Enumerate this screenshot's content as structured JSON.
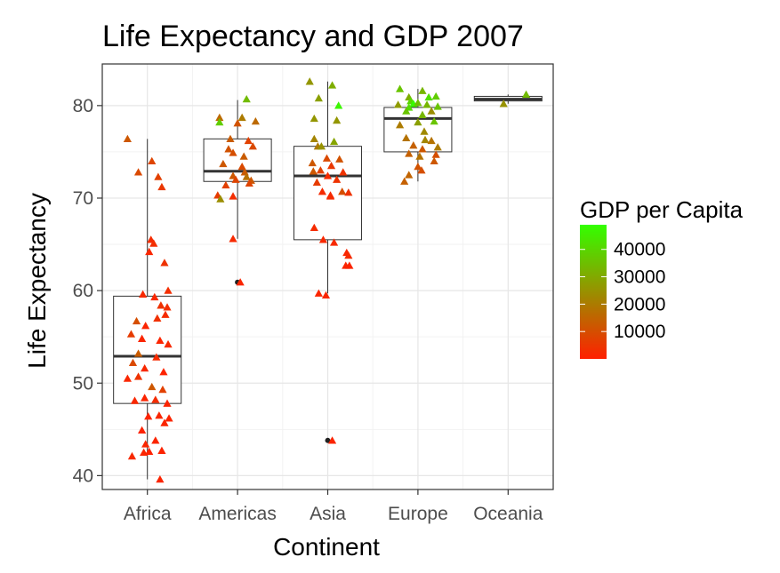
{
  "chart_data": {
    "type": "box",
    "title": "Life Expectancy and GDP 2007",
    "xlabel": "Continent",
    "ylabel": "Life Expectancy",
    "categories": [
      "Africa",
      "Americas",
      "Asia",
      "Europe",
      "Oceania"
    ],
    "ylim": [
      38.5,
      84.5
    ],
    "yticks": [
      40,
      50,
      60,
      70,
      80
    ],
    "grid": true,
    "legend": {
      "title": "GDP per Capita",
      "placement": "right",
      "ticks": [
        10000,
        20000,
        30000,
        40000
      ],
      "range": [
        0,
        49000
      ],
      "color_low": "#ff2000",
      "color_high": "#33ff00"
    },
    "boxes": [
      {
        "category": "Africa",
        "q1": 47.8,
        "median": 52.9,
        "q3": 59.4,
        "whisker_low": 39.6,
        "whisker_high": 76.4,
        "outliers": []
      },
      {
        "category": "Americas",
        "q1": 71.8,
        "median": 72.9,
        "q3": 76.4,
        "whisker_low": 65.6,
        "whisker_high": 80.6,
        "outliers": [
          60.9
        ]
      },
      {
        "category": "Asia",
        "q1": 65.5,
        "median": 72.4,
        "q3": 75.6,
        "whisker_low": 59.7,
        "whisker_high": 82.6,
        "outliers": [
          43.8
        ]
      },
      {
        "category": "Europe",
        "q1": 75.0,
        "median": 78.6,
        "q3": 79.8,
        "whisker_low": 71.8,
        "whisker_high": 81.8,
        "outliers": []
      },
      {
        "category": "Oceania",
        "q1": 80.5,
        "median": 80.7,
        "q3": 81.0,
        "whisker_low": 80.2,
        "whisker_high": 81.2,
        "outliers": []
      }
    ],
    "series": [
      {
        "category": "Africa",
        "points": [
          [
            -0.22,
            76.4,
            12000
          ],
          [
            -0.1,
            72.8,
            9000
          ],
          [
            0.05,
            74.0,
            8000
          ],
          [
            0.12,
            72.3,
            7000
          ],
          [
            0.16,
            71.2,
            5000
          ],
          [
            0.04,
            65.5,
            2500
          ],
          [
            0.02,
            64.2,
            1500
          ],
          [
            0.07,
            65.1,
            3000
          ],
          [
            0.19,
            63.0,
            4000
          ],
          [
            0.23,
            60.0,
            3000
          ],
          [
            -0.05,
            59.6,
            2000
          ],
          [
            0.08,
            59.3,
            1500
          ],
          [
            0.15,
            58.4,
            4000
          ],
          [
            0.22,
            58.2,
            3000
          ],
          [
            0.2,
            57.4,
            2500
          ],
          [
            -0.12,
            56.7,
            10000
          ],
          [
            0.11,
            57.0,
            3500
          ],
          [
            -0.02,
            56.2,
            1000
          ],
          [
            -0.18,
            55.3,
            6000
          ],
          [
            -0.06,
            54.8,
            1200
          ],
          [
            0.14,
            54.6,
            800
          ],
          [
            0.23,
            54.2,
            2000
          ],
          [
            -0.1,
            53.2,
            13000
          ],
          [
            0.1,
            52.8,
            2200
          ],
          [
            -0.16,
            52.2,
            9000
          ],
          [
            -0.03,
            51.6,
            1800
          ],
          [
            0.18,
            51.2,
            600
          ],
          [
            -0.1,
            50.7,
            4000
          ],
          [
            -0.22,
            50.5,
            1300
          ],
          [
            0.05,
            49.6,
            12000
          ],
          [
            0.17,
            49.3,
            7000
          ],
          [
            -0.03,
            48.4,
            900
          ],
          [
            -0.14,
            48.1,
            1500
          ],
          [
            0.09,
            48.2,
            2600
          ],
          [
            0.22,
            47.8,
            800
          ],
          [
            0.01,
            46.4,
            600
          ],
          [
            0.13,
            46.5,
            1400
          ],
          [
            0.24,
            46.2,
            900
          ],
          [
            0.19,
            45.7,
            1100
          ],
          [
            -0.06,
            44.9,
            500
          ],
          [
            0.09,
            43.8,
            1000
          ],
          [
            -0.02,
            43.4,
            1300
          ],
          [
            0.16,
            42.7,
            700
          ],
          [
            -0.17,
            42.1,
            2000
          ],
          [
            -0.04,
            42.5,
            1200
          ],
          [
            0.02,
            42.6,
            300
          ],
          [
            0.14,
            39.6,
            900
          ]
        ]
      },
      {
        "category": "Americas",
        "points": [
          [
            0.1,
            80.7,
            34000
          ],
          [
            -0.2,
            78.7,
            16000
          ],
          [
            -0.2,
            78.2,
            38000
          ],
          [
            0.05,
            78.7,
            20000
          ],
          [
            0.2,
            78.3,
            16000
          ],
          [
            0.0,
            78.1,
            11000
          ],
          [
            -0.08,
            76.4,
            13000
          ],
          [
            0.12,
            76.2,
            7000
          ],
          [
            0.17,
            75.6,
            9000
          ],
          [
            -0.1,
            75.3,
            11000
          ],
          [
            -0.05,
            74.9,
            10000
          ],
          [
            0.07,
            74.5,
            13000
          ],
          [
            -0.16,
            73.7,
            12000
          ],
          [
            0.05,
            73.4,
            9000
          ],
          [
            0.08,
            72.8,
            13000
          ],
          [
            -0.05,
            72.4,
            12000
          ],
          [
            -0.02,
            72.0,
            8000
          ],
          [
            0.1,
            72.3,
            18000
          ],
          [
            0.15,
            71.9,
            12000
          ],
          [
            -0.13,
            71.4,
            7000
          ],
          [
            0.13,
            71.6,
            8000
          ],
          [
            -0.22,
            70.3,
            6000
          ],
          [
            -0.05,
            70.2,
            3000
          ],
          [
            -0.19,
            69.9,
            24000
          ],
          [
            -0.05,
            65.6,
            2000
          ],
          [
            0.03,
            60.9,
            1200
          ]
        ]
      },
      {
        "category": "Asia",
        "points": [
          [
            -0.2,
            82.6,
            26000
          ],
          [
            0.05,
            82.2,
            31000
          ],
          [
            0.12,
            80.0,
            47000
          ],
          [
            -0.1,
            80.8,
            28000
          ],
          [
            -0.15,
            78.6,
            26000
          ],
          [
            0.1,
            78.4,
            26000
          ],
          [
            -0.15,
            76.4,
            22000
          ],
          [
            0.07,
            76.1,
            29000
          ],
          [
            -0.11,
            75.6,
            20000
          ],
          [
            -0.07,
            75.6,
            25000
          ],
          [
            0.13,
            74.2,
            11000
          ],
          [
            -0.17,
            73.8,
            12000
          ],
          [
            -0.01,
            74.3,
            9000
          ],
          [
            0.04,
            73.5,
            5000
          ],
          [
            -0.08,
            73.0,
            7000
          ],
          [
            -0.16,
            72.9,
            12000
          ],
          [
            0.17,
            72.8,
            4000
          ],
          [
            0.0,
            72.4,
            2400
          ],
          [
            0.1,
            72.0,
            4000
          ],
          [
            -0.12,
            71.7,
            6000
          ],
          [
            -0.06,
            70.7,
            2500
          ],
          [
            0.03,
            70.3,
            1000
          ],
          [
            0.16,
            70.7,
            10000
          ],
          [
            0.23,
            70.6,
            4000
          ],
          [
            0.03,
            70.2,
            2500
          ],
          [
            -0.15,
            66.8,
            2500
          ],
          [
            -0.05,
            65.5,
            1800
          ],
          [
            0.07,
            65.2,
            2000
          ],
          [
            0.21,
            64.1,
            1300
          ],
          [
            0.23,
            63.8,
            2500
          ],
          [
            0.2,
            62.7,
            1000
          ],
          [
            0.24,
            62.7,
            900
          ],
          [
            -0.1,
            59.7,
            1000
          ],
          [
            -0.02,
            59.5,
            1400
          ],
          [
            0.05,
            43.8,
            900
          ]
        ]
      },
      {
        "category": "Europe",
        "points": [
          [
            -0.2,
            81.8,
            36000
          ],
          [
            0.05,
            81.6,
            33000
          ],
          [
            0.2,
            81.0,
            38000
          ],
          [
            -0.1,
            80.9,
            31000
          ],
          [
            0.12,
            80.9,
            42000
          ],
          [
            -0.08,
            80.5,
            40000
          ],
          [
            -0.05,
            80.2,
            48000
          ],
          [
            0.0,
            80.3,
            35000
          ],
          [
            -0.22,
            80.1,
            27000
          ],
          [
            0.1,
            80.1,
            33000
          ],
          [
            0.22,
            79.9,
            36000
          ],
          [
            -0.1,
            79.8,
            41000
          ],
          [
            0.15,
            79.4,
            24000
          ],
          [
            -0.13,
            79.4,
            36000
          ],
          [
            0.05,
            79.0,
            33000
          ],
          [
            0.0,
            78.2,
            28000
          ],
          [
            0.18,
            78.3,
            36000
          ],
          [
            -0.2,
            77.9,
            20000
          ],
          [
            0.07,
            77.2,
            23000
          ],
          [
            -0.13,
            76.5,
            18000
          ],
          [
            0.08,
            76.3,
            22000
          ],
          [
            0.15,
            76.2,
            18000
          ],
          [
            -0.05,
            75.7,
            14000
          ],
          [
            0.05,
            75.3,
            12000
          ],
          [
            0.22,
            75.5,
            20000
          ],
          [
            -0.1,
            74.8,
            14000
          ],
          [
            0.02,
            74.5,
            18000
          ],
          [
            0.2,
            74.7,
            10000
          ],
          [
            0.18,
            74.0,
            12000
          ],
          [
            0.0,
            73.4,
            11000
          ],
          [
            0.04,
            73.0,
            10000
          ],
          [
            -0.1,
            72.5,
            15000
          ],
          [
            -0.15,
            71.8,
            14000
          ]
        ]
      },
      {
        "category": "Oceania",
        "points": [
          [
            0.2,
            81.2,
            34000
          ],
          [
            -0.05,
            80.2,
            25000
          ]
        ]
      }
    ]
  }
}
